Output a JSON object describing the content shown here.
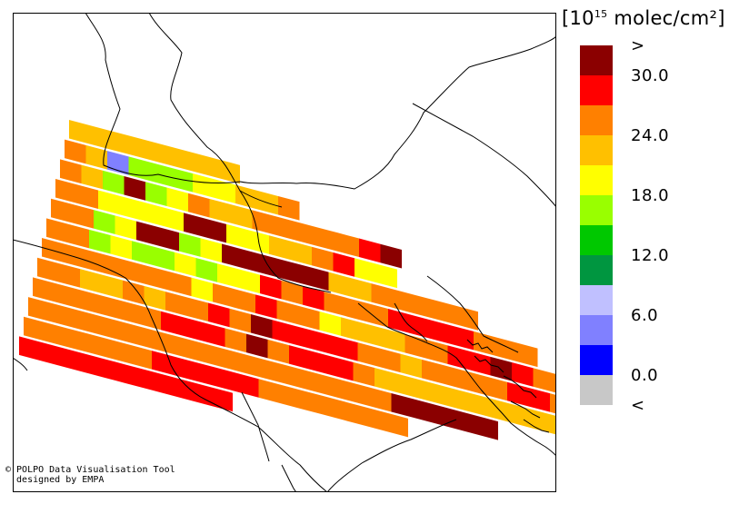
{
  "legend": {
    "title_prefix": "[10",
    "title_exponent": "15",
    "title_suffix": " molec/cm²]",
    "bins": [
      {
        "color": "#8b0000",
        "tick": ">"
      },
      {
        "color": "#ff0000",
        "tick": "30.0"
      },
      {
        "color": "#ff8000",
        "tick": ""
      },
      {
        "color": "#ffc000",
        "tick": "24.0"
      },
      {
        "color": "#ffff00",
        "tick": ""
      },
      {
        "color": "#99ff00",
        "tick": "18.0"
      },
      {
        "color": "#00c800",
        "tick": ""
      },
      {
        "color": "#009640",
        "tick": "12.0"
      },
      {
        "color": "#c0c0ff",
        "tick": ""
      },
      {
        "color": "#8080ff",
        "tick": "6.0"
      },
      {
        "color": "#0000ff",
        "tick": ""
      },
      {
        "color": "#c8c8c8",
        "tick": "0.0"
      },
      {
        "color": "",
        "tick": "<"
      }
    ]
  },
  "credits": {
    "line1": "© POLPO Data Visualisation Tool",
    "line2": "  designed by EMPA"
  },
  "swath": {
    "rows": [
      "33333333",
      "23955544332",
      "2350542332222210",
      "2244440044332144",
      "22540054000003322222",
      "22545545441212221111222",
      "2222222422122433322110122",
      "223323221201111223222211222",
      "2222221112021112333333333333",
      "2222222222222222200000",
      "222222111112222222",
      "1111111111"
    ]
  }
}
